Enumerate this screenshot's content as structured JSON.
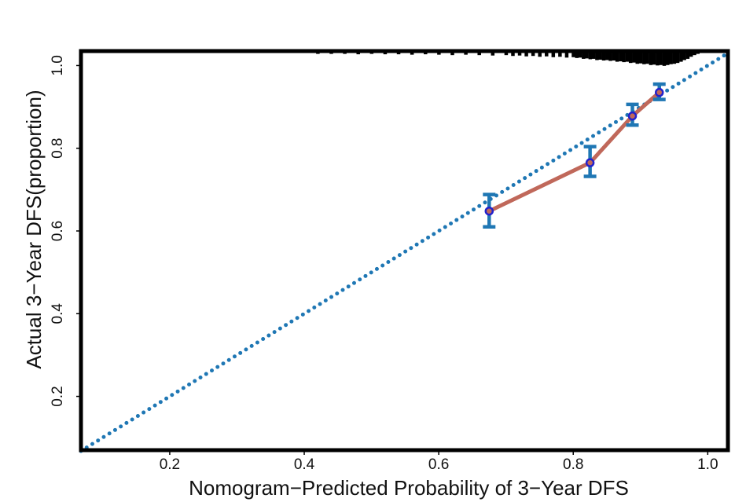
{
  "chart_data": {
    "type": "line",
    "xlabel": "Nomogram−Predicted Probability of 3−Year DFS",
    "ylabel": "Actual 3−Year DFS(proportion)",
    "xlim": [
      0.068,
      1.03
    ],
    "ylim": [
      0.07,
      1.035
    ],
    "x_ticks": [
      0.2,
      0.4,
      0.6,
      0.8,
      1.0
    ],
    "x_tick_labels": [
      "0.2",
      "0.4",
      "0.6",
      "0.8",
      "1.0"
    ],
    "y_ticks": [
      0.2,
      0.4,
      0.6,
      0.8,
      1.0
    ],
    "y_tick_labels": [
      "0.2",
      "0.4",
      "0.6",
      "0.8",
      "1.0"
    ],
    "grid": false,
    "legend": "none",
    "series": [
      {
        "role": "reference",
        "style": "dotted",
        "color": "#1f77b4",
        "x": [
          0.068,
          1.03
        ],
        "y": [
          0.068,
          1.03
        ]
      },
      {
        "role": "calibration",
        "style": "solid",
        "color": "#c0685a",
        "point_color": "#2222cc",
        "error_color": "#1f77b4",
        "x": [
          0.675,
          0.825,
          0.888,
          0.928
        ],
        "y": [
          0.648,
          0.765,
          0.878,
          0.935
        ],
        "y_lower": [
          0.61,
          0.732,
          0.856,
          0.918
        ],
        "y_upper": [
          0.688,
          0.804,
          0.906,
          0.955
        ]
      }
    ],
    "rug": {
      "color": "#000000",
      "x": [
        0.42,
        0.44,
        0.46,
        0.48,
        0.5,
        0.52,
        0.54,
        0.56,
        0.58,
        0.6,
        0.62,
        0.64,
        0.66,
        0.68,
        0.7,
        0.71,
        0.72,
        0.73,
        0.74,
        0.75,
        0.76,
        0.77,
        0.78,
        0.79,
        0.8,
        0.805,
        0.81,
        0.815,
        0.82,
        0.825,
        0.83,
        0.835,
        0.84,
        0.845,
        0.85,
        0.855,
        0.86,
        0.865,
        0.87,
        0.875,
        0.88,
        0.885,
        0.89,
        0.895,
        0.9,
        0.905,
        0.91,
        0.915,
        0.92,
        0.925,
        0.93,
        0.935,
        0.94,
        0.945,
        0.95,
        0.955,
        0.96,
        0.965,
        0.97,
        0.975,
        0.98,
        0.985
      ],
      "height": [
        0.003,
        0.003,
        0.003,
        0.004,
        0.003,
        0.004,
        0.004,
        0.005,
        0.004,
        0.005,
        0.006,
        0.005,
        0.006,
        0.007,
        0.006,
        0.008,
        0.007,
        0.009,
        0.008,
        0.01,
        0.009,
        0.011,
        0.01,
        0.012,
        0.011,
        0.013,
        0.012,
        0.015,
        0.014,
        0.016,
        0.015,
        0.018,
        0.017,
        0.019,
        0.018,
        0.02,
        0.019,
        0.022,
        0.021,
        0.023,
        0.022,
        0.025,
        0.024,
        0.027,
        0.026,
        0.028,
        0.027,
        0.03,
        0.029,
        0.031,
        0.03,
        0.032,
        0.03,
        0.028,
        0.027,
        0.025,
        0.022,
        0.018,
        0.015,
        0.01,
        0.006,
        0.003
      ]
    }
  }
}
